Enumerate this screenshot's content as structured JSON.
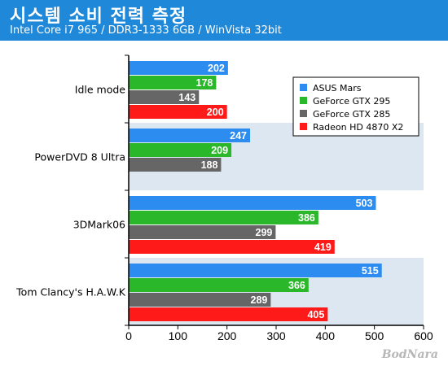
{
  "header": {
    "title": "시스템 소비 전력 측정",
    "subtitle": "Intel Core i7 965 / DDR3-1333 6GB / WinVista 32bit"
  },
  "watermark": "BodNara",
  "chart_data": {
    "type": "bar",
    "orientation": "horizontal",
    "categories": [
      "Idle mode",
      "PowerDVD 8 Ultra",
      "3DMark06",
      "Tom Clancy's H.A.W.K"
    ],
    "series": [
      {
        "name": "ASUS Mars",
        "color": "#2d8cf0",
        "values": [
          202,
          247,
          503,
          515
        ]
      },
      {
        "name": "GeForce GTX 295",
        "color": "#2ab82a",
        "values": [
          178,
          209,
          386,
          366
        ]
      },
      {
        "name": "GeForce GTX 285",
        "color": "#666666",
        "values": [
          143,
          188,
          299,
          289
        ]
      },
      {
        "name": "Radeon HD 4870 X2",
        "color": "#ff1a1a",
        "values": [
          200,
          null,
          419,
          405
        ]
      }
    ],
    "xlim": [
      0,
      600
    ],
    "xticks": [
      0,
      100,
      200,
      300,
      400,
      500,
      600
    ],
    "legend_position": "top-right",
    "band_color": "#dde7f1"
  }
}
